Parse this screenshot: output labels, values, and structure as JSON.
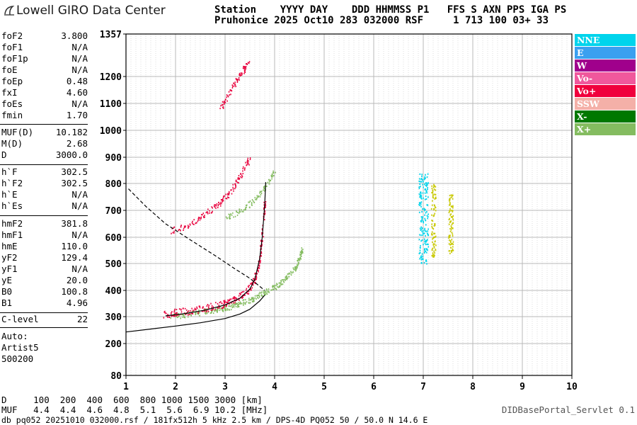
{
  "app": {
    "logo_text": "Lowell GIRO Data Center",
    "servlet": "DIDBasePortal_Servlet 0.1"
  },
  "header": {
    "line1": "Station    YYYY DAY    DDD HHMMSS P1   FFS S AXN PPS IGA PS",
    "line2": "Pruhonice 2025 Oct10 283 032000 RSF     1 713 100 03+ 33"
  },
  "params": [
    {
      "name": "foF2",
      "value": "3.800"
    },
    {
      "name": "foF1",
      "value": "N/A"
    },
    {
      "name": "foF1p",
      "value": "N/A"
    },
    {
      "name": "foE",
      "value": "N/A"
    },
    {
      "name": "foEp",
      "value": "0.48"
    },
    {
      "name": "fxI",
      "value": "4.60"
    },
    {
      "name": "foEs",
      "value": "N/A"
    },
    {
      "name": "fmin",
      "value": "1.70"
    },
    {
      "name": "MUF(D)",
      "value": "10.182"
    },
    {
      "name": "M(D)",
      "value": "2.68"
    },
    {
      "name": "D",
      "value": "3000.0"
    },
    {
      "name": "h`F",
      "value": "302.5"
    },
    {
      "name": "h`F2",
      "value": "302.5"
    },
    {
      "name": "h`E",
      "value": "N/A"
    },
    {
      "name": "h`Es",
      "value": "N/A"
    },
    {
      "name": "hmF2",
      "value": "381.8"
    },
    {
      "name": "hmF1",
      "value": "N/A"
    },
    {
      "name": "hmE",
      "value": "110.0"
    },
    {
      "name": "yF2",
      "value": "129.4"
    },
    {
      "name": "yF1",
      "value": "N/A"
    },
    {
      "name": "yE",
      "value": "20.0"
    },
    {
      "name": "B0",
      "value": "100.8"
    },
    {
      "name": "B1",
      "value": "4.96"
    },
    {
      "name": "C-level",
      "value": "22"
    }
  ],
  "auto": {
    "line1": "Auto:",
    "line2": "Artist5",
    "line3": "500200"
  },
  "legend": [
    {
      "label": "NNE",
      "color": "#00d4ec"
    },
    {
      "label": "E",
      "color": "#3aa0f0"
    },
    {
      "label": "W",
      "color": "#a0008c"
    },
    {
      "label": "Vo-",
      "color": "#f0589c"
    },
    {
      "label": "Vo+",
      "color": "#f0003c"
    },
    {
      "label": "SSW",
      "color": "#f4b0a8"
    },
    {
      "label": "X-",
      "color": "#007800"
    },
    {
      "label": "X+",
      "color": "#84bc60"
    }
  ],
  "footer": {
    "d_line": "D     100  200  400  600  800 1000 1500 3000 [km]",
    "muf_line": "MUF   4.4  4.4  4.6  4.8  5.1  5.6  6.9 10.2 [MHz]",
    "db_line": "db pq052 20251010 032000.rsf / 181fx512h 5 kHz 2.5 km / DPS-4D PQ052 50 / 50.0 N 14.6 E"
  },
  "chart_data": {
    "type": "scatter",
    "x_ticks": [
      "1",
      "2",
      "3",
      "4",
      "5",
      "6",
      "7",
      "8",
      "9",
      "10"
    ],
    "y_ticks": [
      "80",
      "200",
      "300",
      "400",
      "500",
      "600",
      "700",
      "800",
      "900",
      "1000",
      "1100",
      "1200",
      "1357"
    ],
    "xlim": [
      1,
      10
    ],
    "ylim": [
      80,
      1357
    ],
    "grid": true,
    "series": [
      {
        "key": "echo_x_trace",
        "color": "#84bc60",
        "points": [
          [
            1.9,
            302
          ],
          [
            2.2,
            310
          ],
          [
            2.5,
            318
          ],
          [
            2.8,
            327
          ],
          [
            3.0,
            334
          ],
          [
            3.2,
            345
          ],
          [
            3.4,
            358
          ],
          [
            3.6,
            374
          ],
          [
            3.8,
            392
          ],
          [
            4.0,
            415
          ],
          [
            4.2,
            443
          ],
          [
            4.4,
            482
          ],
          [
            4.5,
            520
          ],
          [
            4.55,
            560
          ]
        ]
      },
      {
        "key": "echo_o_trace",
        "color": "#e8003c",
        "points": [
          [
            1.75,
            310
          ],
          [
            2.0,
            318
          ],
          [
            2.3,
            324
          ],
          [
            2.6,
            334
          ],
          [
            2.9,
            346
          ],
          [
            3.1,
            360
          ],
          [
            3.3,
            380
          ],
          [
            3.5,
            410
          ],
          [
            3.6,
            445
          ],
          [
            3.7,
            520
          ],
          [
            3.75,
            620
          ],
          [
            3.8,
            740
          ]
        ]
      },
      {
        "key": "echo_2hop_o",
        "color": "#e8003c",
        "points": [
          [
            1.9,
            625
          ],
          [
            2.3,
            650
          ],
          [
            2.6,
            690
          ],
          [
            2.9,
            730
          ],
          [
            3.1,
            770
          ],
          [
            3.3,
            830
          ],
          [
            3.5,
            900
          ]
        ]
      },
      {
        "key": "echo_2hop_x",
        "color": "#84bc60",
        "points": [
          [
            3.0,
            670
          ],
          [
            3.3,
            700
          ],
          [
            3.6,
            740
          ],
          [
            3.8,
            790
          ],
          [
            4.0,
            850
          ]
        ]
      },
      {
        "key": "echo_3hop",
        "color": "#e8003c",
        "points": [
          [
            2.9,
            1080
          ],
          [
            3.1,
            1150
          ],
          [
            3.3,
            1210
          ],
          [
            3.5,
            1260
          ]
        ]
      },
      {
        "key": "echo_nne_band",
        "color": "#00d4ec",
        "points": [
          [
            6.95,
            500
          ],
          [
            6.95,
            840
          ],
          [
            7.05,
            500
          ],
          [
            7.05,
            840
          ]
        ]
      },
      {
        "key": "echo_mid_band",
        "color": "#c8c800",
        "points": [
          [
            7.2,
            520
          ],
          [
            7.2,
            800
          ],
          [
            7.55,
            540
          ],
          [
            7.6,
            760
          ]
        ]
      }
    ],
    "profile_curve": [
      [
        1,
        243
      ],
      [
        1.5,
        254
      ],
      [
        2,
        265
      ],
      [
        2.5,
        277
      ],
      [
        3,
        293
      ],
      [
        3.3,
        310
      ],
      [
        3.5,
        328
      ],
      [
        3.7,
        360
      ],
      [
        3.8,
        381.8
      ]
    ],
    "trace_curve": [
      [
        1.8,
        303
      ],
      [
        2.2,
        312
      ],
      [
        2.6,
        325
      ],
      [
        3.0,
        345
      ],
      [
        3.3,
        370
      ],
      [
        3.5,
        405
      ],
      [
        3.6,
        440
      ],
      [
        3.7,
        520
      ],
      [
        3.75,
        600
      ],
      [
        3.8,
        720
      ],
      [
        3.82,
        805
      ]
    ],
    "muf_curve": [
      [
        1.05,
        780
      ],
      [
        1.4,
        715
      ],
      [
        1.8,
        650
      ],
      [
        2.3,
        590
      ],
      [
        2.8,
        530
      ],
      [
        3.2,
        480
      ],
      [
        3.5,
        445
      ],
      [
        3.8,
        400
      ]
    ]
  }
}
